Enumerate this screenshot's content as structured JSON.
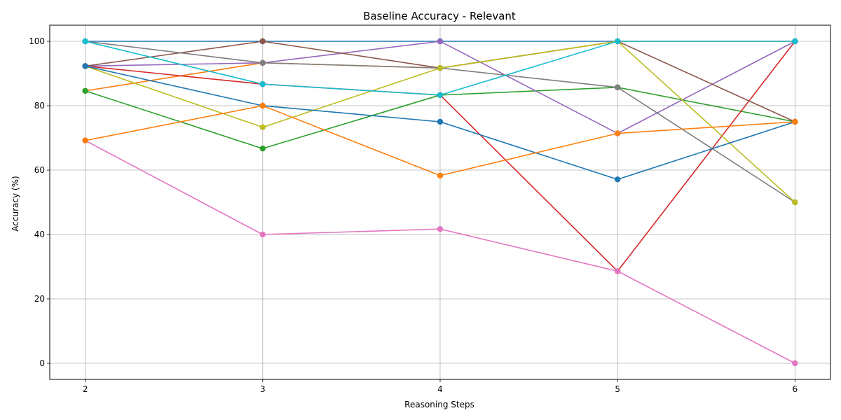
{
  "chart_data": {
    "type": "line",
    "title": "Baseline Accuracy - Relevant",
    "xlabel": "Reasoning Steps",
    "ylabel": "Accuracy (%)",
    "x": [
      2,
      3,
      4,
      5,
      6
    ],
    "xlim": [
      1.8,
      6.2
    ],
    "ylim": [
      -5,
      105
    ],
    "xticks": [
      2,
      3,
      4,
      5,
      6
    ],
    "yticks": [
      0,
      20,
      40,
      60,
      80,
      100
    ],
    "grid": true,
    "markers": "circle",
    "series": [
      {
        "color": "#1f77b4",
        "values": [
          100,
          100,
          100,
          100,
          100
        ]
      },
      {
        "color": "#ff7f0e",
        "values": [
          84.6,
          93.3,
          91.7,
          100,
          100
        ]
      },
      {
        "color": "#2ca02c",
        "values": [
          84.6,
          66.7,
          83.3,
          85.7,
          75
        ]
      },
      {
        "color": "#d62728",
        "values": [
          92.3,
          86.7,
          83.3,
          28.6,
          100
        ]
      },
      {
        "color": "#9467bd",
        "values": [
          92.3,
          93.3,
          100,
          71.4,
          100
        ]
      },
      {
        "color": "#8c564b",
        "values": [
          92.3,
          100,
          91.7,
          100,
          75
        ]
      },
      {
        "color": "#e377c2",
        "values": [
          69.2,
          40,
          41.7,
          28.6,
          0
        ]
      },
      {
        "color": "#7f7f7f",
        "values": [
          100,
          93.3,
          91.7,
          85.7,
          50
        ]
      },
      {
        "color": "#bcbd22",
        "values": [
          92.3,
          73.3,
          91.7,
          100,
          50
        ]
      },
      {
        "color": "#17becf",
        "values": [
          100,
          86.7,
          83.3,
          100,
          100
        ]
      },
      {
        "color": "#1f77b4",
        "values": [
          92.3,
          80,
          75,
          57.1,
          75
        ]
      },
      {
        "color": "#ff7f0e",
        "values": [
          69.2,
          80,
          58.3,
          71.4,
          75
        ]
      }
    ]
  }
}
